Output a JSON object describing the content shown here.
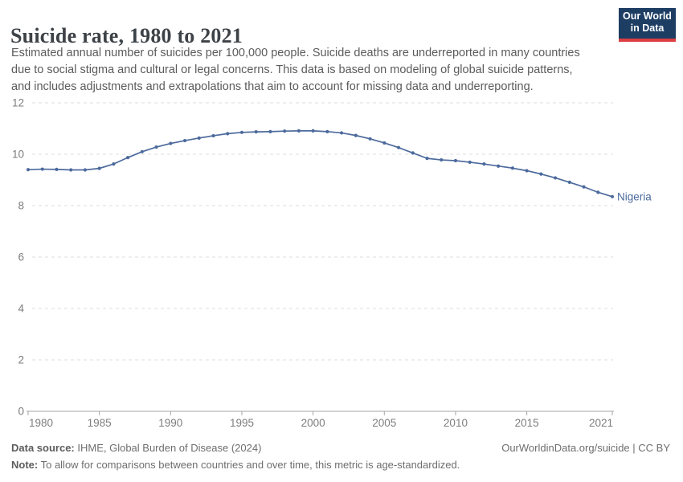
{
  "header": {
    "title": "Suicide rate, 1980 to 2021",
    "subtitle_lines": [
      "Estimated annual number of suicides per 100,000 people. Suicide deaths are underreported in many countries",
      "due to social stigma and cultural or legal concerns. This data is based on modeling of global suicide patterns,",
      "and includes adjustments and extrapolations that aim to account for missing data and underreporting."
    ],
    "logo": {
      "line1": "Our World",
      "line2": "in Data"
    }
  },
  "chart_data": {
    "type": "line",
    "title": "Suicide rate, 1980 to 2021",
    "xlabel": "",
    "ylabel": "",
    "xlim": [
      1980,
      2021
    ],
    "ylim": [
      0,
      12
    ],
    "grid": "horizontal-dashed",
    "legend_position": "end-of-line-label",
    "y_ticks": [
      0,
      2,
      4,
      6,
      8,
      10,
      12
    ],
    "x_ticks": [
      1980,
      1985,
      1990,
      1995,
      2000,
      2005,
      2010,
      2015,
      2021
    ],
    "series": [
      {
        "name": "Nigeria",
        "color": "#4c6a9c",
        "years": [
          1980,
          1981,
          1982,
          1983,
          1984,
          1985,
          1986,
          1987,
          1988,
          1989,
          1990,
          1991,
          1992,
          1993,
          1994,
          1995,
          1996,
          1997,
          1998,
          1999,
          2000,
          2001,
          2002,
          2003,
          2004,
          2005,
          2006,
          2007,
          2008,
          2009,
          2010,
          2011,
          2012,
          2013,
          2014,
          2015,
          2016,
          2017,
          2018,
          2019,
          2020,
          2021
        ],
        "values": [
          9.4,
          9.42,
          9.41,
          9.39,
          9.39,
          9.45,
          9.62,
          9.87,
          10.1,
          10.28,
          10.42,
          10.53,
          10.63,
          10.72,
          10.8,
          10.85,
          10.87,
          10.88,
          10.9,
          10.91,
          10.91,
          10.88,
          10.83,
          10.73,
          10.6,
          10.44,
          10.26,
          10.05,
          9.84,
          9.78,
          9.75,
          9.69,
          9.62,
          9.54,
          9.46,
          9.36,
          9.23,
          9.08,
          8.91,
          8.73,
          8.52,
          8.35
        ]
      }
    ]
  },
  "footer": {
    "source_label": "Data source:",
    "source_text": " IHME, Global Burden of Disease (2024)",
    "link_text": "OurWorldinData.org/suicide | CC BY",
    "note_label": "Note:",
    "note_text": " To allow for comparisons between countries and over time, this metric is age-standardized."
  },
  "colors": {
    "line": "#4c6a9c",
    "grid": "#dedede",
    "axis": "#a5a5a5",
    "tick_label": "#7d7d7d",
    "title": "#3d4247",
    "subtitle": "#5b5b5b",
    "footer": "#6e6e6e",
    "logo_bg": "#1d3d63",
    "logo_stripe": "#dc3e42"
  }
}
